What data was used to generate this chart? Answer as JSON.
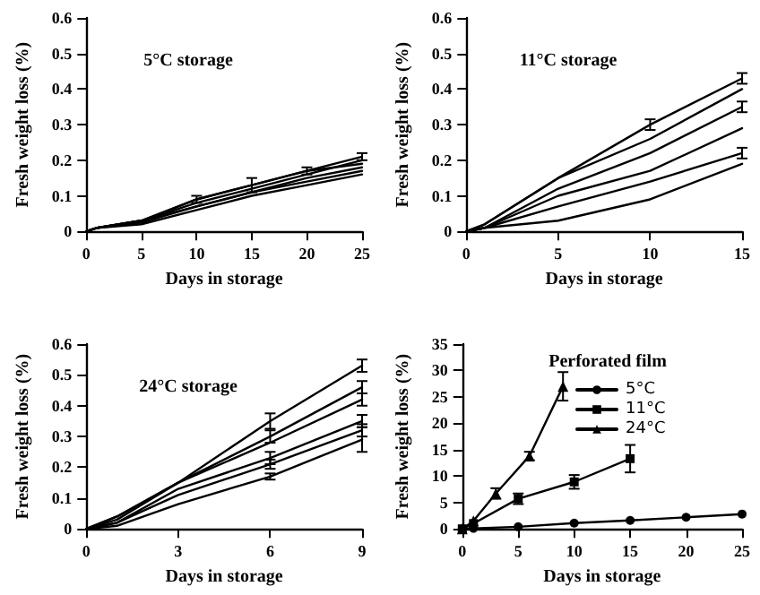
{
  "chart_data": [
    {
      "type": "line",
      "title": "5°C storage",
      "xlabel": "Days in storage",
      "ylabel": "Fresh weight loss (%)",
      "xlim": [
        0,
        25
      ],
      "xticks": [
        0,
        5,
        10,
        15,
        20,
        25
      ],
      "ylim": [
        0,
        0.6
      ],
      "yticks": [
        0,
        0.1,
        0.2,
        0.3,
        0.4,
        0.5,
        0.6
      ],
      "grid": false,
      "legend": false,
      "x": [
        0,
        1,
        5,
        10,
        15,
        20,
        25
      ],
      "series": [
        {
          "color": "#000000",
          "values": [
            0,
            0.01,
            0.03,
            0.09,
            0.13,
            0.17,
            0.21
          ],
          "errors": [
            null,
            null,
            null,
            0.01,
            0.02,
            0.01,
            0.01
          ]
        },
        {
          "color": "#000000",
          "values": [
            0,
            0.01,
            0.03,
            0.08,
            0.12,
            0.16,
            0.2
          ]
        },
        {
          "color": "#000000",
          "values": [
            0,
            0.01,
            0.03,
            0.09,
            0.13,
            0.17,
            0.19
          ]
        },
        {
          "color": "#000000",
          "values": [
            0,
            0.01,
            0.03,
            0.07,
            0.11,
            0.15,
            0.18
          ]
        },
        {
          "color": "#000000",
          "values": [
            0,
            0.01,
            0.025,
            0.07,
            0.11,
            0.14,
            0.17
          ]
        },
        {
          "color": "#000000",
          "values": [
            0,
            0.01,
            0.02,
            0.06,
            0.1,
            0.13,
            0.16
          ]
        }
      ]
    },
    {
      "type": "line",
      "title": "11°C storage",
      "xlabel": "Days in storage",
      "ylabel": "Fresh weight loss (%)",
      "xlim": [
        0,
        15
      ],
      "xticks": [
        0,
        5,
        10,
        15
      ],
      "ylim": [
        0,
        0.6
      ],
      "yticks": [
        0,
        0.1,
        0.2,
        0.3,
        0.4,
        0.5,
        0.6
      ],
      "grid": false,
      "legend": false,
      "x": [
        0,
        1,
        5,
        10,
        15
      ],
      "series": [
        {
          "color": "#000000",
          "values": [
            0,
            0.02,
            0.15,
            0.3,
            0.43
          ],
          "errors": [
            null,
            null,
            null,
            0.015,
            0.015
          ]
        },
        {
          "color": "#000000",
          "values": [
            0,
            0.02,
            0.15,
            0.26,
            0.4
          ]
        },
        {
          "color": "#000000",
          "values": [
            0,
            0.01,
            0.12,
            0.22,
            0.35
          ],
          "errors": [
            null,
            null,
            null,
            null,
            0.015
          ]
        },
        {
          "color": "#000000",
          "values": [
            0,
            0.01,
            0.1,
            0.17,
            0.29
          ]
        },
        {
          "color": "#000000",
          "values": [
            0,
            0.01,
            0.07,
            0.14,
            0.22
          ],
          "errors": [
            null,
            null,
            null,
            null,
            0.015
          ]
        },
        {
          "color": "#000000",
          "values": [
            0,
            0.01,
            0.03,
            0.09,
            0.19
          ]
        }
      ]
    },
    {
      "type": "line",
      "title": "24°C storage",
      "xlabel": "Days in storage",
      "ylabel": "Fresh weight loss (%)",
      "xlim": [
        0,
        9
      ],
      "xticks": [
        0,
        3,
        6,
        9
      ],
      "ylim": [
        0,
        0.6
      ],
      "yticks": [
        0,
        0.1,
        0.2,
        0.3,
        0.4,
        0.5,
        0.6
      ],
      "grid": false,
      "legend": false,
      "x": [
        0,
        1,
        3,
        6,
        9
      ],
      "series": [
        {
          "color": "#000000",
          "values": [
            0,
            0.04,
            0.15,
            0.35,
            0.53
          ],
          "errors": [
            null,
            null,
            null,
            0.025,
            0.02
          ]
        },
        {
          "color": "#000000",
          "values": [
            0,
            0.04,
            0.15,
            0.3,
            0.46
          ],
          "errors": [
            null,
            null,
            null,
            0.02,
            0.02
          ]
        },
        {
          "color": "#000000",
          "values": [
            0,
            0.03,
            0.15,
            0.28,
            0.42
          ],
          "errors": [
            null,
            null,
            null,
            null,
            0.02
          ]
        },
        {
          "color": "#000000",
          "values": [
            0,
            0.02,
            0.13,
            0.23,
            0.35
          ],
          "errors": [
            null,
            null,
            null,
            0.02,
            0.02
          ]
        },
        {
          "color": "#000000",
          "values": [
            0,
            0.02,
            0.11,
            0.21,
            0.32
          ],
          "errors": [
            null,
            null,
            null,
            0.015,
            0.02
          ]
        },
        {
          "color": "#000000",
          "values": [
            0,
            0.01,
            0.08,
            0.17,
            0.29
          ],
          "errors": [
            null,
            null,
            null,
            0.01,
            0.04
          ]
        }
      ]
    },
    {
      "type": "line",
      "legend_title": "Perforated film",
      "xlabel": "Days in storage",
      "ylabel": "Fresh weight loss (%)",
      "xlim": [
        0,
        25
      ],
      "xticks": [
        0,
        5,
        10,
        15,
        20,
        25
      ],
      "ylim": [
        0,
        35
      ],
      "yticks": [
        0,
        5,
        10,
        15,
        20,
        25,
        30,
        35
      ],
      "grid": false,
      "legend": "top right",
      "series": [
        {
          "name": "5°C",
          "color": "#000000",
          "marker": "circle",
          "x": [
            0,
            1,
            5,
            10,
            15,
            20,
            25
          ],
          "values": [
            0,
            0.1,
            0.4,
            1.1,
            1.6,
            2.2,
            2.8
          ]
        },
        {
          "name": "11°C",
          "color": "#000000",
          "marker": "square",
          "x": [
            0,
            1,
            5,
            10,
            15
          ],
          "values": [
            0,
            1,
            5.7,
            8.9,
            13.3
          ],
          "errors": [
            null,
            null,
            1,
            1.3,
            2.6
          ]
        },
        {
          "name": "24°C",
          "color": "#000000",
          "marker": "triangle",
          "x": [
            0,
            1,
            3,
            6,
            9
          ],
          "values": [
            0,
            1.5,
            6.7,
            13.8,
            27
          ],
          "errors": [
            null,
            null,
            1,
            0.8,
            2.7
          ]
        }
      ]
    }
  ]
}
